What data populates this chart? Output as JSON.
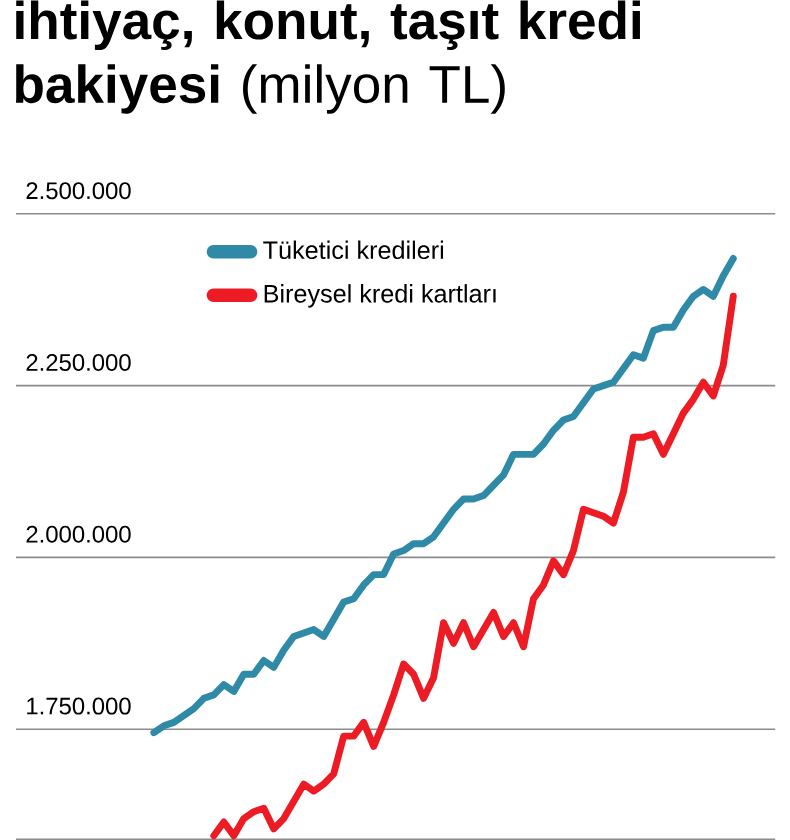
{
  "chart_data": {
    "type": "line",
    "title": "**ihtiyaç, konut, taşıt kredi bakiyesi** (milyon TL)",
    "categories": [
      null,
      null,
      null,
      null,
      null,
      null,
      null,
      null,
      null,
      null,
      null,
      null,
      null,
      null,
      null,
      null,
      null,
      null,
      null,
      null,
      null,
      null,
      null,
      null,
      null,
      null,
      null,
      null,
      null,
      null,
      null,
      null,
      null,
      null,
      null,
      null,
      null,
      null,
      null,
      null,
      null,
      null,
      null,
      null,
      null,
      null,
      null,
      null,
      null,
      null,
      null,
      null,
      null,
      null,
      null,
      null,
      null,
      null,
      null
    ],
    "ylim": [
      1590000,
      2500000
    ],
    "yticks": [
      {
        "value": 1750000,
        "label": "1.750.000"
      },
      {
        "value": 2000000,
        "label": "2.000.000"
      },
      {
        "value": 2250000,
        "label": "2.250.000"
      },
      {
        "value": 2500000,
        "label": "2.500.000"
      }
    ],
    "tick_labels": "y",
    "grid": "y",
    "legend": "top left",
    "marker": "none",
    "line_style": "solid",
    "series": [
      {
        "name": "Tüketici kredileri",
        "color": "#2e8aa6",
        "values": [
          1745000,
          1755000,
          1760000,
          1770000,
          1780000,
          1795000,
          1800000,
          1815000,
          1805000,
          1830000,
          1830000,
          1850000,
          1840000,
          1865000,
          1885000,
          1890000,
          1895000,
          1885000,
          1910000,
          1935000,
          1940000,
          1960000,
          1975000,
          1975000,
          2005000,
          2010000,
          2020000,
          2020000,
          2030000,
          2050000,
          2070000,
          2085000,
          2085000,
          2090000,
          2105000,
          2120000,
          2150000,
          2150000,
          2150000,
          2165000,
          2185000,
          2200000,
          2205000,
          2225000,
          2245000,
          2250000,
          2255000,
          2275000,
          2295000,
          2290000,
          2330000,
          2335000,
          2335000,
          2360000,
          2380000,
          2390000,
          2380000,
          2410000,
          2435000
        ]
      },
      {
        "name": "Bireysel kredi kartları",
        "color": "#ed1c24",
        "values": [
          null,
          null,
          null,
          null,
          null,
          null,
          1595000,
          1615000,
          1595000,
          1620000,
          1630000,
          1635000,
          1605000,
          1620000,
          1645000,
          1670000,
          1660000,
          1670000,
          1685000,
          1740000,
          1740000,
          1760000,
          1725000,
          1760000,
          1800000,
          1845000,
          1830000,
          1795000,
          1825000,
          1905000,
          1875000,
          1905000,
          1870000,
          1895000,
          1920000,
          1885000,
          1905000,
          1870000,
          1940000,
          1960000,
          1995000,
          1975000,
          2010000,
          2070000,
          2065000,
          2060000,
          2050000,
          2095000,
          2175000,
          2175000,
          2180000,
          2150000,
          2180000,
          2210000,
          2230000,
          2255000,
          2235000,
          2280000,
          2380000
        ]
      }
    ]
  }
}
